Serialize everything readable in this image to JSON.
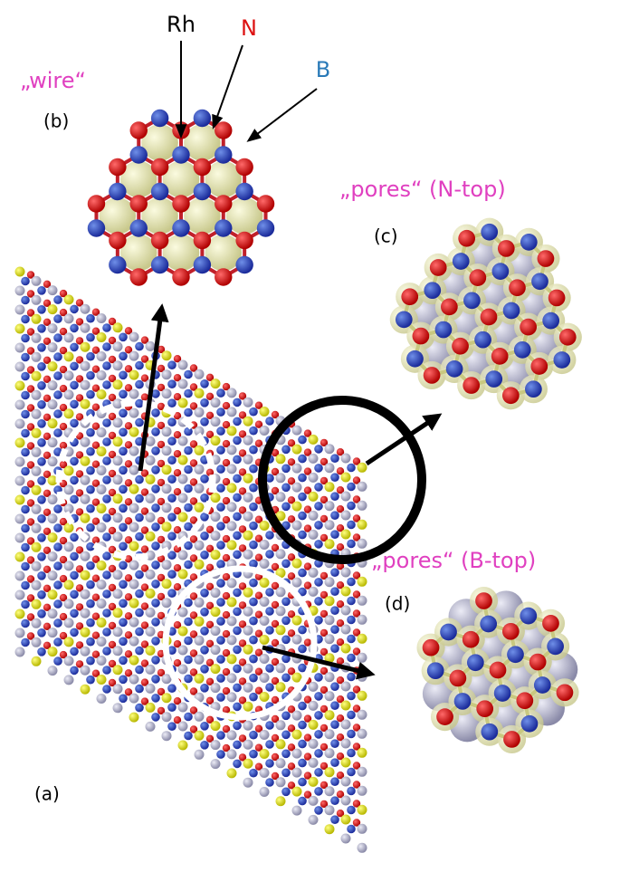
{
  "labels": {
    "rh": "Rh",
    "n": "N",
    "b": "B"
  },
  "panels": {
    "a": {
      "label": "(a)"
    },
    "b": {
      "label": "(b)",
      "caption": "„wire“"
    },
    "c": {
      "label": "(c)",
      "caption": "„pores“ (N-top)"
    },
    "d": {
      "label": "(d)",
      "caption": "„pores“ (B-top)"
    }
  }
}
